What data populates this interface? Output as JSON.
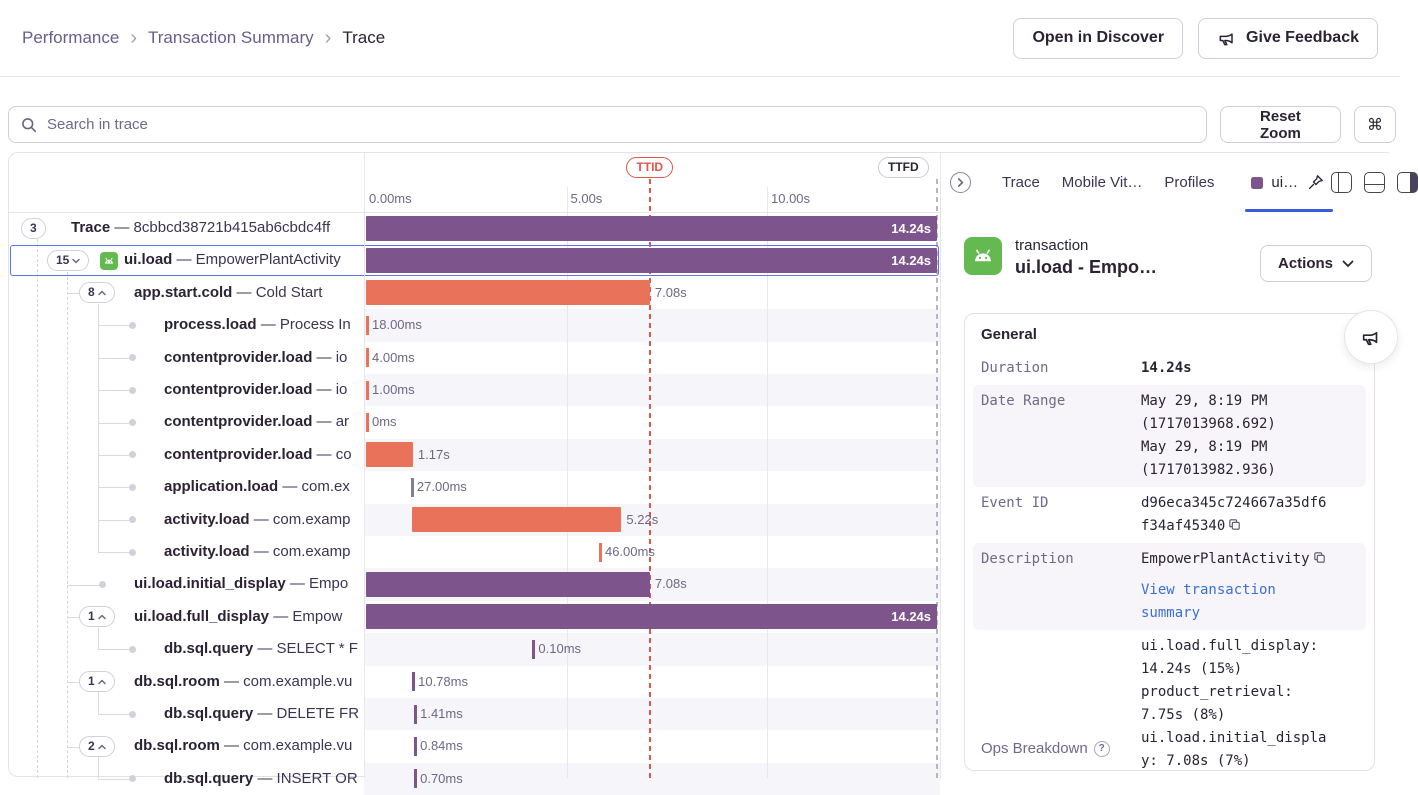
{
  "breadcrumb": {
    "items": [
      "Performance",
      "Transaction Summary",
      "Trace"
    ]
  },
  "header": {
    "open_discover": "Open in Discover",
    "give_feedback": "Give Feedback"
  },
  "toolbar": {
    "search_placeholder": "Search in trace",
    "reset_zoom": "Reset Zoom",
    "shortcut": "⌘"
  },
  "colors": {
    "purple": "#7D548C",
    "orange": "#E8735A",
    "gray": "#847E95",
    "ttid_red": "#E0564B",
    "ttfd_gray": "#B9B3C4",
    "selection_blue": "#5F73EE",
    "link_blue": "#3A6FD8",
    "android_green": "#64B950",
    "active_tab_underline": "#3B5BDB"
  },
  "axis": {
    "ticks": [
      {
        "label": "0.00ms",
        "s": 0
      },
      {
        "label": "5.00s",
        "s": 5
      },
      {
        "label": "10.00s",
        "s": 10
      }
    ],
    "markers": [
      {
        "label": "TTID",
        "s": 7.08,
        "style": "red"
      },
      {
        "label": "TTFD",
        "s": 14.24,
        "style": "gray"
      }
    ]
  },
  "tree_rows": [
    {
      "op": "Trace",
      "desc": "8cbbcd38721b415ab6cbdc4ff",
      "badge": "3",
      "chev": "",
      "level": 0,
      "bar": {
        "kind": "bar",
        "color": "purple",
        "start": 0,
        "dur": 14.24,
        "label": "14.24s",
        "inside": true
      }
    },
    {
      "op": "ui.load",
      "desc": "EmpowerPlantActivity",
      "badge": "15",
      "chev": "v",
      "icon": "android",
      "level": 1,
      "selected": true,
      "bar": {
        "kind": "bar",
        "color": "purple",
        "start": 0,
        "dur": 14.24,
        "label": "14.24s",
        "inside": true
      }
    },
    {
      "op": "app.start.cold",
      "desc": "Cold Start",
      "badge": "8",
      "chev": "^",
      "level": 2,
      "bar": {
        "kind": "bar",
        "color": "orange",
        "start": 0,
        "dur": 7.08,
        "label": "7.08s"
      }
    },
    {
      "op": "process.load",
      "desc": "Process In",
      "dot": true,
      "level": 3,
      "bar": {
        "kind": "tick",
        "color": "orange",
        "start": 0,
        "label": "18.00ms"
      }
    },
    {
      "op": "contentprovider.load",
      "desc": "io",
      "dot": true,
      "level": 3,
      "bar": {
        "kind": "tick",
        "color": "orange",
        "start": 0,
        "label": "4.00ms"
      }
    },
    {
      "op": "contentprovider.load",
      "desc": "io",
      "dot": true,
      "level": 3,
      "bar": {
        "kind": "tick",
        "color": "orange",
        "start": 0,
        "label": "1.00ms"
      }
    },
    {
      "op": "contentprovider.load",
      "desc": "ar",
      "dot": true,
      "level": 3,
      "bar": {
        "kind": "tick",
        "color": "orange",
        "start": 0,
        "label": "0ms"
      }
    },
    {
      "op": "contentprovider.load",
      "desc": "co",
      "dot": true,
      "level": 3,
      "bar": {
        "kind": "bar",
        "color": "orange",
        "start": 0,
        "dur": 1.17,
        "label": "1.17s"
      }
    },
    {
      "op": "application.load",
      "desc": "com.ex",
      "dot": true,
      "level": 3,
      "bar": {
        "kind": "tick",
        "color": "gray",
        "start": 1.12,
        "label": "27.00ms"
      }
    },
    {
      "op": "activity.load",
      "desc": "com.examp",
      "dot": true,
      "level": 3,
      "bar": {
        "kind": "bar",
        "color": "orange",
        "start": 1.15,
        "dur": 5.22,
        "label": "5.22s"
      }
    },
    {
      "op": "activity.load",
      "desc": "com.examp",
      "dot": true,
      "level": 3,
      "bar": {
        "kind": "tick",
        "color": "orange",
        "start": 5.81,
        "label": "46.00ms"
      }
    },
    {
      "op": "ui.load.initial_display",
      "desc": "Empo",
      "dot": true,
      "level": 2,
      "bar": {
        "kind": "bar",
        "color": "purple",
        "start": 0,
        "dur": 7.08,
        "label": "7.08s"
      }
    },
    {
      "op": "ui.load.full_display",
      "desc": "Empow",
      "badge": "1",
      "chev": "^",
      "level": 2,
      "bar": {
        "kind": "bar",
        "color": "purple",
        "start": 0,
        "dur": 14.24,
        "label": "14.24s",
        "inside": true
      }
    },
    {
      "op": "db.sql.query",
      "desc": "SELECT * F",
      "dot": true,
      "level": 3,
      "bar": {
        "kind": "tick",
        "color": "purple",
        "start": 4.15,
        "label": "0.10ms"
      }
    },
    {
      "op": "db.sql.room",
      "desc": "com.example.vu",
      "badge": "1",
      "chev": "^",
      "level": 2,
      "bar": {
        "kind": "tick",
        "color": "purple",
        "start": 1.15,
        "label": "10.78ms"
      }
    },
    {
      "op": "db.sql.query",
      "desc": "DELETE FR",
      "dot": true,
      "level": 3,
      "bar": {
        "kind": "tick",
        "color": "purple",
        "start": 1.2,
        "label": "1.41ms"
      }
    },
    {
      "op": "db.sql.room",
      "desc": "com.example.vu",
      "badge": "2",
      "chev": "^",
      "level": 2,
      "bar": {
        "kind": "tick",
        "color": "purple",
        "start": 1.2,
        "label": "0.84ms"
      }
    },
    {
      "op": "db.sql.query",
      "desc": "INSERT OR",
      "dot": true,
      "level": 3,
      "bar": {
        "kind": "tick",
        "color": "purple",
        "start": 1.2,
        "label": "0.70ms"
      }
    }
  ],
  "drawer": {
    "tabs": [
      "Trace",
      "Mobile Vit…",
      "Profiles"
    ],
    "active_tab": "ui…",
    "txn_type": "transaction",
    "txn_title": "ui.load - Empo…",
    "actions_label": "Actions",
    "general": {
      "title": "General",
      "rows": [
        {
          "label": "Duration",
          "lines": [
            "14.24s"
          ],
          "bold": true
        },
        {
          "label": "Date Range",
          "lines": [
            "May 29, 8:19 PM",
            "(1717013968.692)",
            "May 29, 8:19 PM",
            "(1717013982.936)"
          ],
          "shaded": true
        },
        {
          "label": "Event ID",
          "lines": [
            "d96eca345c724667a35df6",
            "f34af45340"
          ],
          "copy": true
        }
      ],
      "description": {
        "label": "Description",
        "value": "EmpowerPlantActivity",
        "copy": true,
        "link_lines": [
          "View transaction",
          "summary"
        ]
      },
      "ops_lines": [
        "ui.load.full_display:",
        "14.24s (15%)",
        "product_retrieval:",
        "7.75s (8%)",
        "ui.load.initial_displa",
        "y: 7.08s (7%)"
      ],
      "ops_label": "Ops Breakdown"
    }
  }
}
